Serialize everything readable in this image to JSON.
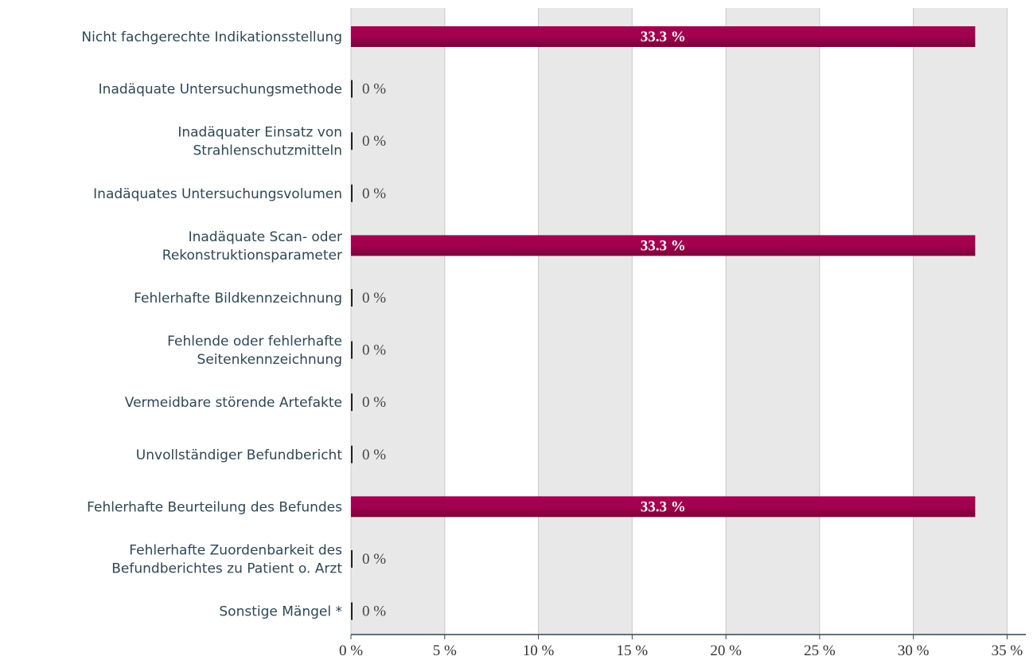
{
  "chart_data": {
    "type": "barh",
    "categories": [
      "Nicht fachgerechte Indikationsstellung",
      "Inadäquate Untersuchungsmethode",
      "Inadäquater Einsatz von\nStrahlenschutzmitteln",
      "Inadäquates Untersuchungsvolumen",
      "Inadäquate Scan- oder\nRekonstruktionsparameter",
      "Fehlerhafte Bildkennzeichnung",
      "Fehlende oder fehlerhafte\nSeitenkennzeichnung",
      "Vermeidbare störende Artefakte",
      "Unvollständiger Befundbericht",
      "Fehlerhafte Beurteilung des Befundes",
      "Fehlerhafte Zuordenbarkeit des\nBefundberichtes zu Patient o. Arzt",
      "Sonstige Mängel *"
    ],
    "values": [
      33.3,
      0,
      0,
      0,
      33.3,
      0,
      0,
      0,
      0,
      33.3,
      0,
      0
    ],
    "value_labels": [
      "33.3 %",
      "0 %",
      "0 %",
      "0 %",
      "33.3 %",
      "0 %",
      "0 %",
      "0 %",
      "0 %",
      "33.3 %",
      "0 %",
      "0 %"
    ],
    "color": "#a3004f",
    "xlim": [
      0,
      36
    ],
    "xticks": [
      {
        "value": 0,
        "label": "0 %"
      },
      {
        "value": 5,
        "label": "5 %"
      },
      {
        "value": 10,
        "label": "10 %"
      },
      {
        "value": 15,
        "label": "15 %"
      },
      {
        "value": 20,
        "label": "20 %"
      },
      {
        "value": 25,
        "label": "25 %"
      },
      {
        "value": 30,
        "label": "30 %"
      },
      {
        "value": 35,
        "label": "35 %"
      }
    ],
    "grid": true
  }
}
